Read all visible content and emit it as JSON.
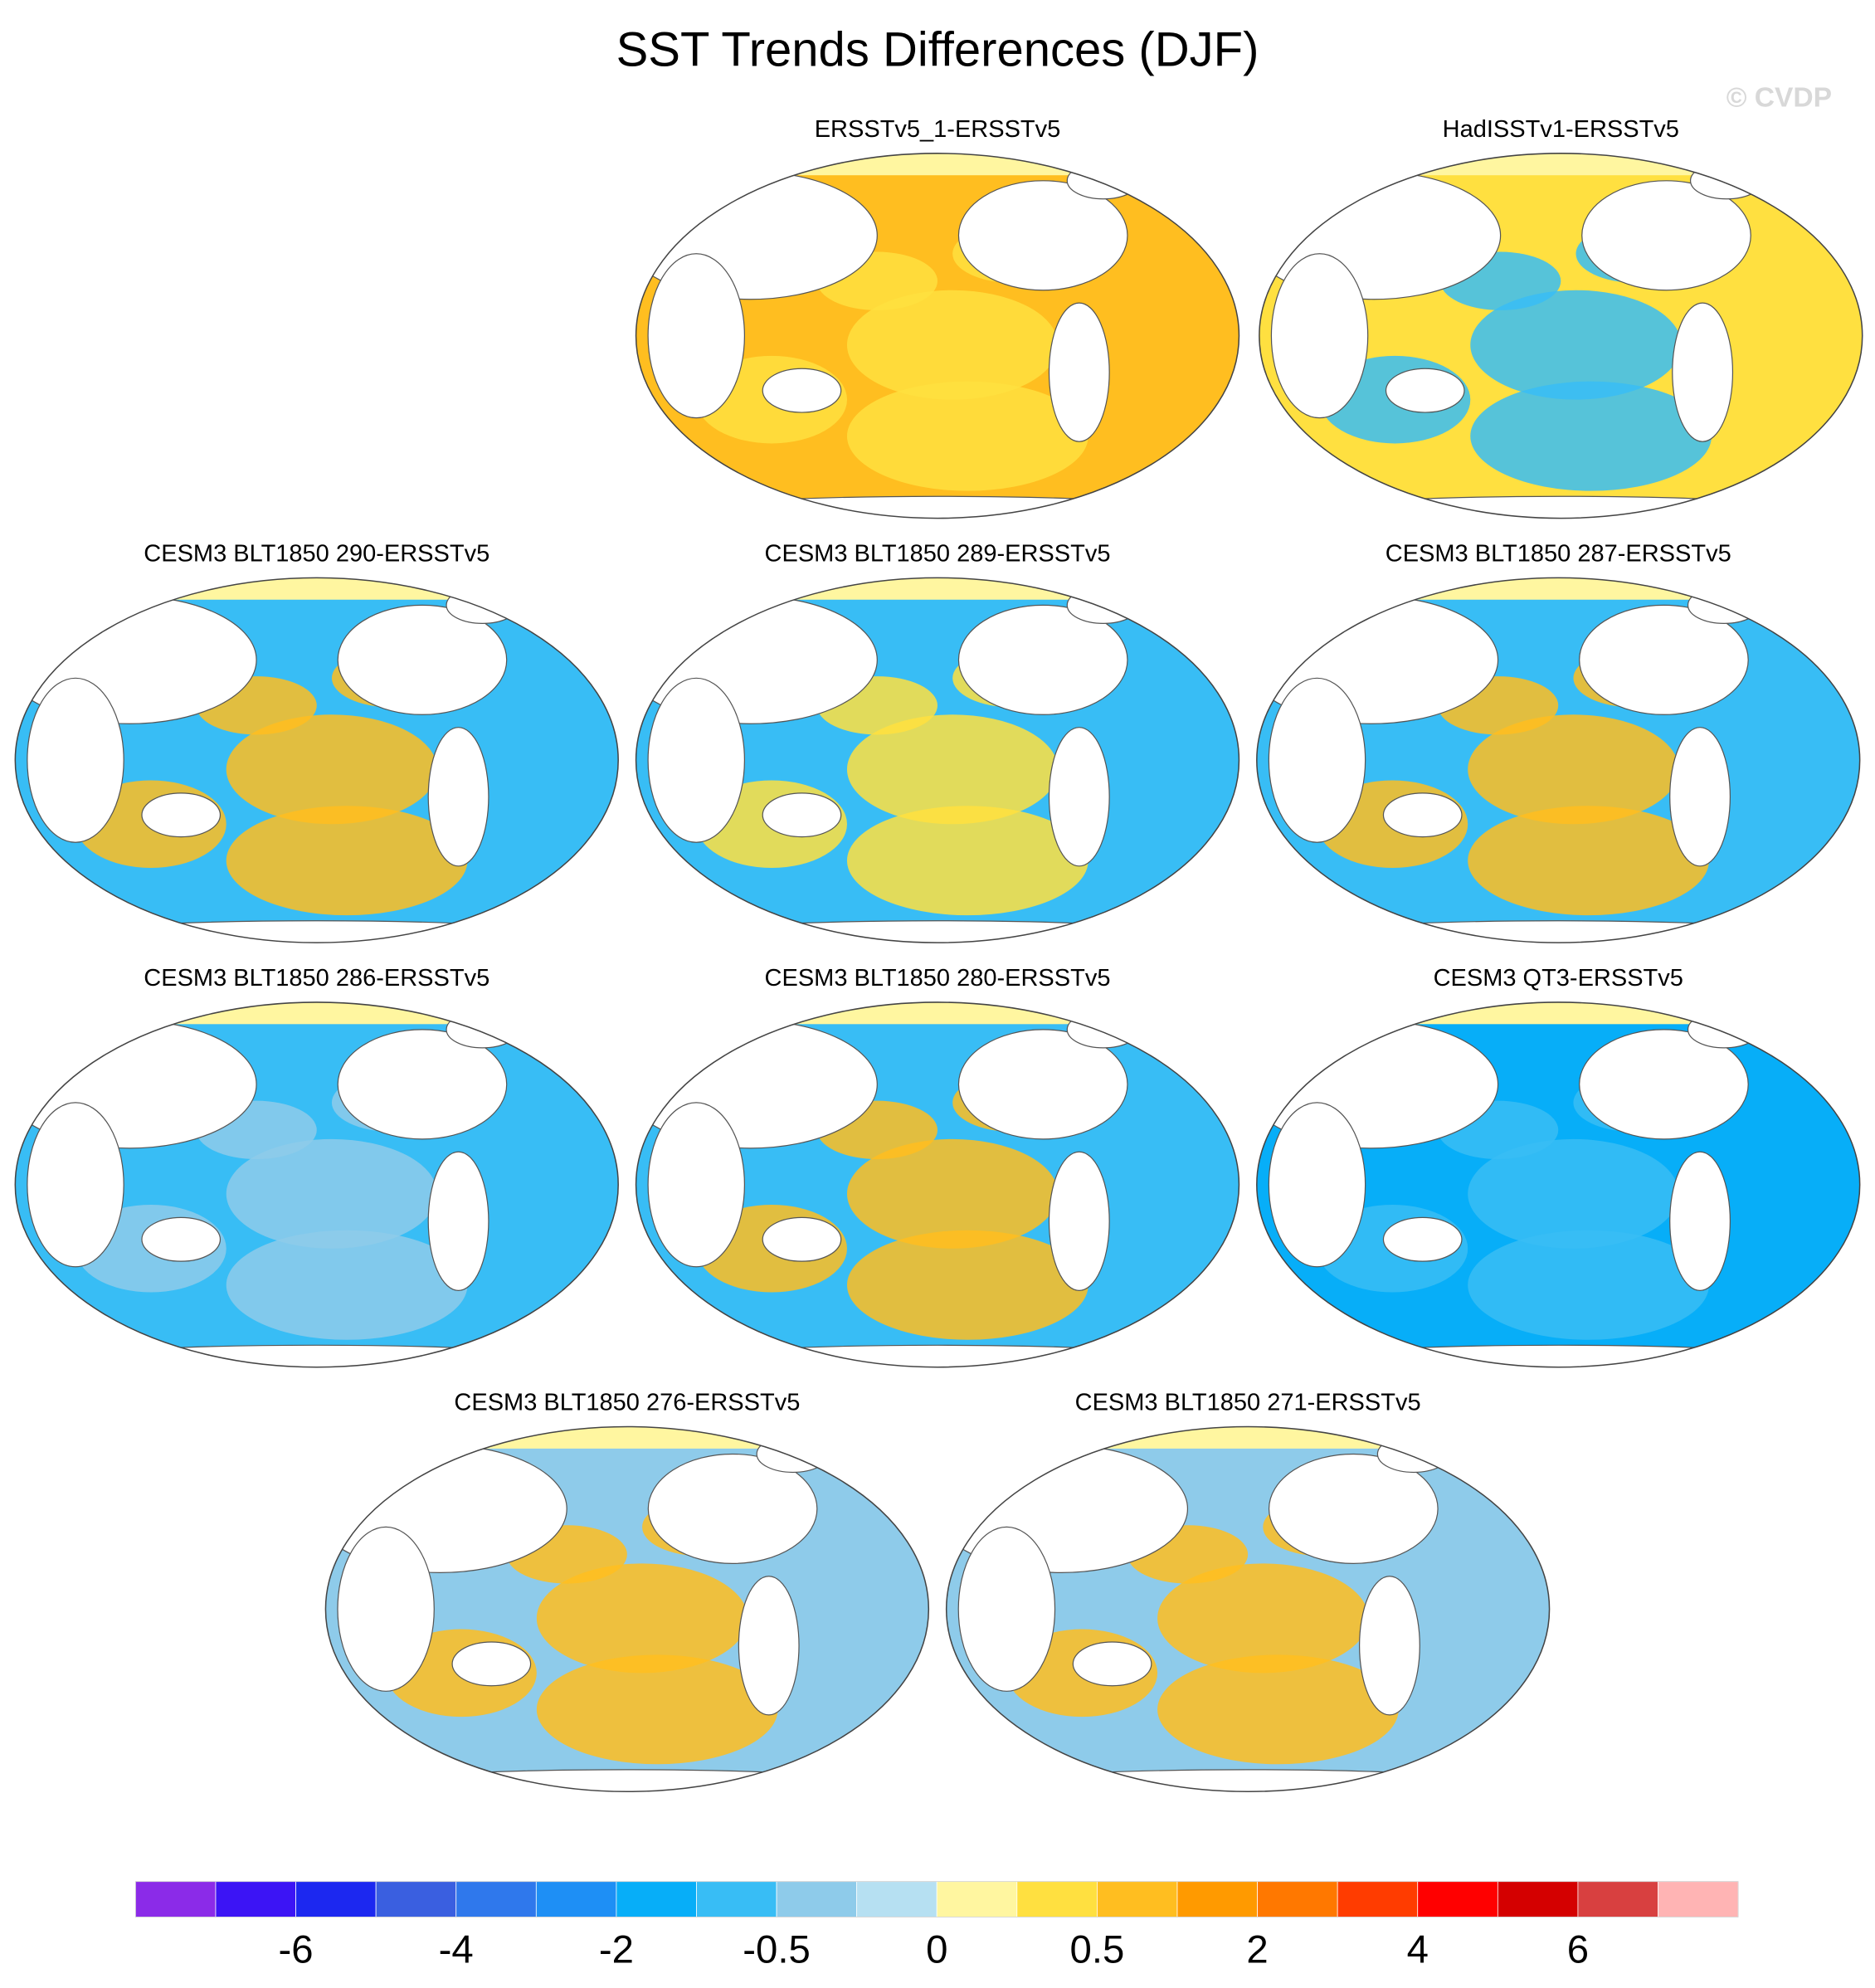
{
  "title": "SST Trends Differences (DJF)",
  "watermark": "© CVDP",
  "panels": [
    {
      "title": "ERSSTv5_1-ERSSTv5"
    },
    {
      "title": "HadISSTv1-ERSSTv5"
    },
    {
      "title": "CESM3 BLT1850 290-ERSSTv5"
    },
    {
      "title": "CESM3 BLT1850 289-ERSSTv5"
    },
    {
      "title": "CESM3 BLT1850 287-ERSSTv5"
    },
    {
      "title": "CESM3 BLT1850 286-ERSSTv5"
    },
    {
      "title": "CESM3 BLT1850 280-ERSSTv5"
    },
    {
      "title": "CESM3 QT3-ERSSTv5"
    },
    {
      "title": "CESM3 BLT1850 276-ERSSTv5"
    },
    {
      "title": "CESM3 BLT1850 271-ERSSTv5"
    }
  ],
  "colorbar": {
    "colors": [
      "#8b2be8",
      "#3c14f5",
      "#1c28f0",
      "#3a5fe0",
      "#2f78ec",
      "#1e8ff5",
      "#07aef8",
      "#38bdf5",
      "#8ecbea",
      "#b6e0f2",
      "#fff6a0",
      "#ffe040",
      "#ffbe20",
      "#ff9a00",
      "#ff7800",
      "#ff3c00",
      "#ff0000",
      "#d40000",
      "#d84040",
      "#ffb4b4"
    ],
    "labels": [
      -6,
      -4,
      -2,
      -0.5,
      0,
      0.5,
      2,
      4,
      6
    ]
  }
}
